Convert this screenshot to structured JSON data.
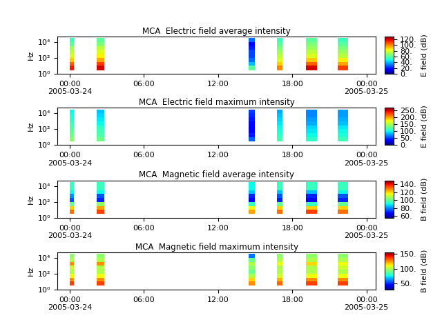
{
  "chart_data": [
    {
      "type": "heatmap",
      "title": "MCA  Electric field average intensity",
      "y_label": "Hz",
      "colorbar_label": "E field (dB)",
      "log": "y",
      "xlim": [
        "2005-03-23T23:00",
        "2005-03-25T00:45"
      ],
      "xticks": [
        {
          "value": "2005-03-24T00:00",
          "label": "00:00\n2005-03-24"
        },
        {
          "value": "2005-03-24T06:00",
          "label": "06:00"
        },
        {
          "value": "2005-03-24T12:00",
          "label": "12:00"
        },
        {
          "value": "2005-03-24T18:00",
          "label": "18:00"
        },
        {
          "value": "2005-03-25T00:00",
          "label": "00:00\n2005-03-25"
        }
      ],
      "ylim": [
        1,
        50000
      ],
      "yticks": [
        {
          "value": 1,
          "label": "10⁰"
        },
        {
          "value": 100,
          "label": "10²"
        },
        {
          "value": 10000,
          "label": "10⁴"
        }
      ],
      "y_edges": [
        3,
        10,
        30,
        100,
        300,
        1000,
        3000,
        10000,
        30000
      ],
      "segments": [
        {
          "start": "2005-03-24T00:00",
          "end": "2005-03-24T00:20",
          "values": [
            115,
            105,
            90,
            80,
            75,
            70,
            60,
            55
          ]
        },
        {
          "start": "2005-03-24T02:10",
          "end": "2005-03-24T02:48",
          "values": [
            120,
            110,
            95,
            85,
            80,
            75,
            65,
            60
          ]
        },
        {
          "start": "2005-03-24T14:27",
          "end": "2005-03-24T14:58",
          "values": [
            60,
            40,
            30,
            25,
            25,
            20,
            15,
            30
          ]
        },
        {
          "start": "2005-03-24T16:45",
          "end": "2005-03-24T17:12",
          "values": [
            100,
            90,
            80,
            75,
            70,
            65,
            60,
            55
          ]
        },
        {
          "start": "2005-03-24T19:08",
          "end": "2005-03-24T20:00",
          "values": [
            120,
            105,
            90,
            80,
            75,
            70,
            65,
            60
          ]
        },
        {
          "start": "2005-03-24T21:40",
          "end": "2005-03-24T22:30",
          "values": [
            110,
            95,
            85,
            75,
            70,
            65,
            60,
            55
          ]
        }
      ],
      "colorbar_range": [
        0,
        130
      ],
      "colorbar_ticks": [
        {
          "value": 0,
          "label": "0."
        },
        {
          "value": 20,
          "label": "20."
        },
        {
          "value": 40,
          "label": "40."
        },
        {
          "value": 60,
          "label": "60."
        },
        {
          "value": 80,
          "label": "80."
        },
        {
          "value": 100,
          "label": "100."
        },
        {
          "value": 120,
          "label": "120."
        }
      ]
    },
    {
      "type": "heatmap",
      "title": "MCA  Electric field maximum intensity",
      "y_label": "Hz",
      "colorbar_label": "E field (dB)",
      "log": "y",
      "xlim": [
        "2005-03-23T23:00",
        "2005-03-25T00:45"
      ],
      "xticks": [
        {
          "value": "2005-03-24T00:00",
          "label": "00:00\n2005-03-24"
        },
        {
          "value": "2005-03-24T06:00",
          "label": "06:00"
        },
        {
          "value": "2005-03-24T12:00",
          "label": "12:00"
        },
        {
          "value": "2005-03-24T18:00",
          "label": "18:00"
        },
        {
          "value": "2005-03-25T00:00",
          "label": "00:00\n2005-03-25"
        }
      ],
      "ylim": [
        1,
        50000
      ],
      "yticks": [
        {
          "value": 1,
          "label": "10⁰"
        },
        {
          "value": 100,
          "label": "10²"
        },
        {
          "value": 10000,
          "label": "10⁴"
        }
      ],
      "y_edges": [
        3,
        10,
        30,
        100,
        300,
        1000,
        3000,
        10000,
        30000
      ],
      "segments": [
        {
          "start": "2005-03-24T00:00",
          "end": "2005-03-24T00:20",
          "values": [
            140,
            130,
            125,
            120,
            115,
            110,
            105,
            100
          ]
        },
        {
          "start": "2005-03-24T02:10",
          "end": "2005-03-24T02:48",
          "values": [
            130,
            120,
            115,
            110,
            100,
            95,
            90,
            85
          ]
        },
        {
          "start": "2005-03-24T14:27",
          "end": "2005-03-24T14:58",
          "values": [
            60,
            40,
            30,
            30,
            35,
            40,
            45,
            50
          ]
        },
        {
          "start": "2005-03-24T16:45",
          "end": "2005-03-24T17:12",
          "values": [
            120,
            110,
            105,
            100,
            95,
            90,
            85,
            80
          ]
        },
        {
          "start": "2005-03-24T19:08",
          "end": "2005-03-24T20:00",
          "values": [
            110,
            100,
            95,
            90,
            80,
            75,
            70,
            70
          ]
        },
        {
          "start": "2005-03-24T21:40",
          "end": "2005-03-24T22:30",
          "values": [
            115,
            105,
            100,
            95,
            85,
            80,
            75,
            75
          ]
        }
      ],
      "colorbar_range": [
        0,
        270
      ],
      "colorbar_ticks": [
        {
          "value": 0,
          "label": "0."
        },
        {
          "value": 50,
          "label": "50."
        },
        {
          "value": 100,
          "label": "100."
        },
        {
          "value": 150,
          "label": "150."
        },
        {
          "value": 200,
          "label": "200."
        },
        {
          "value": 250,
          "label": "250."
        }
      ]
    },
    {
      "type": "heatmap",
      "title": "MCA  Magnetic field average intensity",
      "y_label": "Hz",
      "colorbar_label": "B field (dB)",
      "log": "y",
      "xlim": [
        "2005-03-23T23:00",
        "2005-03-25T00:45"
      ],
      "xticks": [
        {
          "value": "2005-03-24T00:00",
          "label": "00:00\n2005-03-24"
        },
        {
          "value": "2005-03-24T06:00",
          "label": "06:00"
        },
        {
          "value": "2005-03-24T12:00",
          "label": "12:00"
        },
        {
          "value": "2005-03-24T18:00",
          "label": "18:00"
        },
        {
          "value": "2005-03-25T00:00",
          "label": "00:00\n2005-03-25"
        }
      ],
      "ylim": [
        1,
        50000
      ],
      "yticks": [
        {
          "value": 1,
          "label": "10⁰"
        },
        {
          "value": 100,
          "label": "10²"
        },
        {
          "value": 10000,
          "label": "10⁴"
        }
      ],
      "y_edges": [
        3,
        10,
        30,
        100,
        300,
        1000,
        3000,
        10000,
        30000
      ],
      "segments": [
        {
          "start": "2005-03-24T00:00",
          "end": "2005-03-24T00:20",
          "values": [
            130,
            120,
            100,
            75,
            80,
            90,
            95,
            95
          ]
        },
        {
          "start": "2005-03-24T02:10",
          "end": "2005-03-24T02:48",
          "values": [
            135,
            125,
            105,
            70,
            75,
            90,
            95,
            95
          ]
        },
        {
          "start": "2005-03-24T14:27",
          "end": "2005-03-24T14:58",
          "values": [
            125,
            115,
            95,
            65,
            70,
            85,
            90,
            90
          ]
        },
        {
          "start": "2005-03-24T16:45",
          "end": "2005-03-24T17:12",
          "values": [
            130,
            120,
            100,
            70,
            75,
            85,
            95,
            95
          ]
        },
        {
          "start": "2005-03-24T19:08",
          "end": "2005-03-24T20:00",
          "values": [
            135,
            120,
            95,
            65,
            70,
            85,
            95,
            95
          ]
        },
        {
          "start": "2005-03-24T21:40",
          "end": "2005-03-24T22:30",
          "values": [
            130,
            120,
            100,
            70,
            75,
            90,
            95,
            95
          ]
        }
      ],
      "colorbar_range": [
        55,
        150
      ],
      "colorbar_ticks": [
        {
          "value": 60,
          "label": "60."
        },
        {
          "value": 80,
          "label": "80."
        },
        {
          "value": 100,
          "label": "100."
        },
        {
          "value": 120,
          "label": "120."
        },
        {
          "value": 140,
          "label": "140."
        }
      ]
    },
    {
      "type": "heatmap",
      "title": "MCA  Magnetic field maximum intensity",
      "y_label": "Hz",
      "colorbar_label": "B field (dB)",
      "log": "y",
      "xlim": [
        "2005-03-23T23:00",
        "2005-03-25T00:45"
      ],
      "xticks": [
        {
          "value": "2005-03-24T00:00",
          "label": "00:00\n2005-03-24"
        },
        {
          "value": "2005-03-24T06:00",
          "label": "06:00"
        },
        {
          "value": "2005-03-24T12:00",
          "label": "12:00"
        },
        {
          "value": "2005-03-24T18:00",
          "label": "18:00"
        },
        {
          "value": "2005-03-25T00:00",
          "label": "00:00\n2005-03-25"
        }
      ],
      "ylim": [
        1,
        50000
      ],
      "yticks": [
        {
          "value": 1,
          "label": "10⁰"
        },
        {
          "value": 100,
          "label": "10²"
        },
        {
          "value": 10000,
          "label": "10⁴"
        }
      ],
      "y_edges": [
        3,
        10,
        30,
        100,
        300,
        1000,
        3000,
        10000,
        30000
      ],
      "segments": [
        {
          "start": "2005-03-24T00:00",
          "end": "2005-03-24T00:20",
          "values": [
            135,
            125,
            110,
            100,
            105,
            125,
            100,
            95
          ]
        },
        {
          "start": "2005-03-24T02:10",
          "end": "2005-03-24T02:48",
          "values": [
            135,
            125,
            110,
            100,
            100,
            125,
            100,
            95
          ]
        },
        {
          "start": "2005-03-24T14:27",
          "end": "2005-03-24T14:58",
          "values": [
            125,
            115,
            100,
            90,
            95,
            100,
            90,
            60
          ]
        },
        {
          "start": "2005-03-24T16:45",
          "end": "2005-03-24T17:12",
          "values": [
            130,
            120,
            105,
            100,
            100,
            110,
            100,
            95
          ]
        },
        {
          "start": "2005-03-24T19:08",
          "end": "2005-03-24T20:00",
          "values": [
            135,
            125,
            110,
            100,
            100,
            115,
            100,
            95
          ]
        },
        {
          "start": "2005-03-24T21:40",
          "end": "2005-03-24T22:30",
          "values": [
            135,
            125,
            110,
            100,
            105,
            110,
            100,
            95
          ]
        }
      ],
      "colorbar_range": [
        30,
        155
      ],
      "colorbar_ticks": [
        {
          "value": 50,
          "label": "50."
        },
        {
          "value": 100,
          "label": "100."
        },
        {
          "value": 150,
          "label": "150."
        }
      ]
    }
  ]
}
